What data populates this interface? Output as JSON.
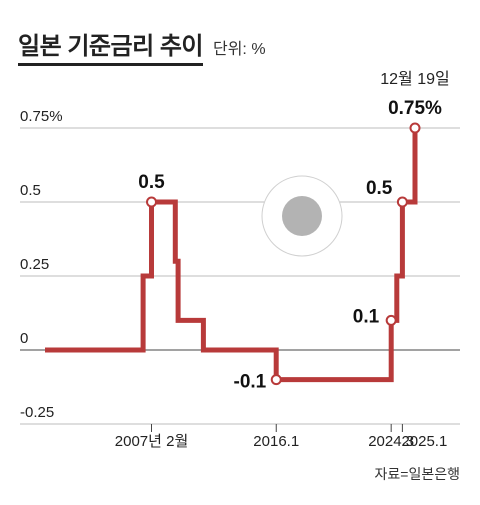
{
  "header": {
    "title": "일본 기준금리 추이",
    "unit": "단위: %"
  },
  "chart_data": {
    "type": "line",
    "title": "일본 기준금리 추이",
    "xlabel": "",
    "ylabel": "",
    "ylim": [
      -0.25,
      0.75
    ],
    "yticks": [
      {
        "value": 0.75,
        "label": "0.75%"
      },
      {
        "value": 0.5,
        "label": "0.5"
      },
      {
        "value": 0.25,
        "label": "0.25"
      },
      {
        "value": 0,
        "label": "0"
      },
      {
        "value": -0.25,
        "label": "-0.25"
      }
    ],
    "xticks": [
      {
        "value": 2007.1,
        "label": "2007년 2월"
      },
      {
        "value": 2016.0,
        "label": "2016.1"
      },
      {
        "value": 2024.2,
        "label": "2024.3"
      },
      {
        "value": 2025.0,
        "label": "2025.1"
      }
    ],
    "x": [
      1999.5,
      2006.5,
      2006.5,
      2007.1,
      2007.1,
      2008.8,
      2008.8,
      2009.0,
      2009.0,
      2010.8,
      2010.8,
      2016.0,
      2016.0,
      2024.2,
      2024.2,
      2024.6,
      2024.6,
      2025.0,
      2025.0,
      2025.9,
      2025.9
    ],
    "values": [
      0,
      0,
      0.25,
      0.25,
      0.5,
      0.5,
      0.3,
      0.3,
      0.1,
      0.1,
      0,
      0,
      -0.1,
      -0.1,
      0.1,
      0.1,
      0.25,
      0.25,
      0.5,
      0.5,
      0.75
    ],
    "markers": [
      {
        "x": 2007.1,
        "y": 0.5,
        "label": "0.5"
      },
      {
        "x": 2016.0,
        "y": -0.1,
        "label": "-0.1"
      },
      {
        "x": 2024.2,
        "y": 0.1,
        "label": "0.1"
      },
      {
        "x": 2025.0,
        "y": 0.5,
        "label": "0.5"
      },
      {
        "x": 2025.9,
        "y": 0.75,
        "label": "0.75%"
      }
    ],
    "date_annotation": "12월 19일",
    "grid": true,
    "line_color": "#b83a3a"
  },
  "footer": {
    "source": "자료=일본은행"
  }
}
